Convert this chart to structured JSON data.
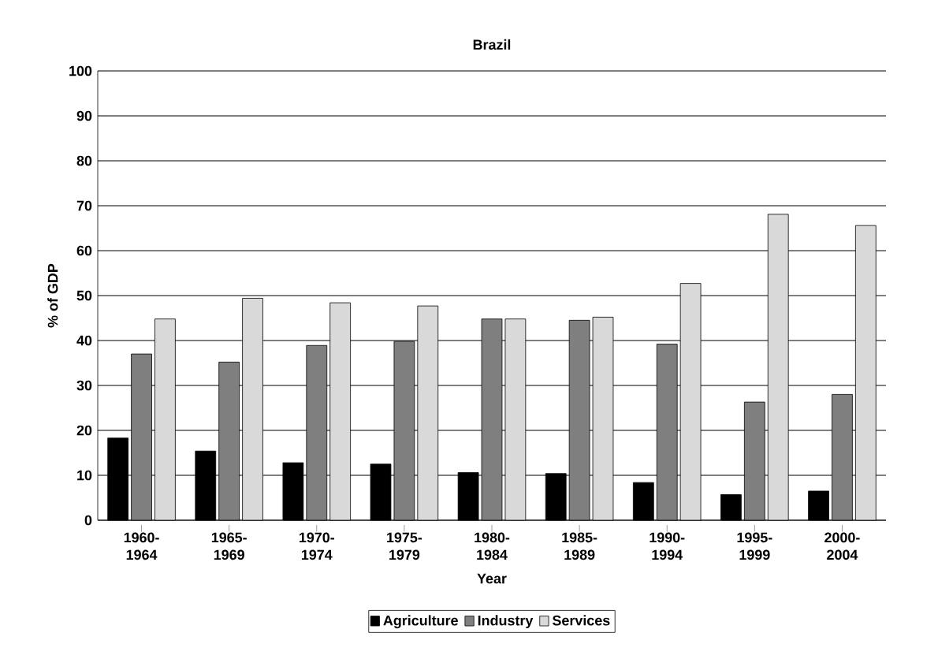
{
  "chart_data": {
    "type": "bar",
    "title": "Brazil",
    "xlabel": "Year",
    "ylabel": "% of GDP",
    "categories": [
      "1960-1964",
      "1965-1969",
      "1970-1974",
      "1975-1979",
      "1980-1984",
      "1985-1989",
      "1990-1994",
      "1995-1999",
      "2000-2004"
    ],
    "series": [
      {
        "name": "Agriculture",
        "color": "#000000",
        "values": [
          18.3,
          15.4,
          12.8,
          12.5,
          10.6,
          10.4,
          8.4,
          5.7,
          6.5
        ]
      },
      {
        "name": "Industry",
        "color": "#7f7f7f",
        "values": [
          37.0,
          35.2,
          38.9,
          39.8,
          44.8,
          44.5,
          39.2,
          26.3,
          28.0
        ]
      },
      {
        "name": "Services",
        "color": "#d9d9d9",
        "values": [
          44.8,
          49.4,
          48.4,
          47.7,
          44.8,
          45.2,
          52.7,
          68.1,
          65.6
        ]
      }
    ],
    "ylim": [
      0,
      100
    ],
    "yticks": [
      0,
      10,
      20,
      30,
      40,
      50,
      60,
      70,
      80,
      90,
      100
    ],
    "grid": "y",
    "legend": "bottom"
  }
}
